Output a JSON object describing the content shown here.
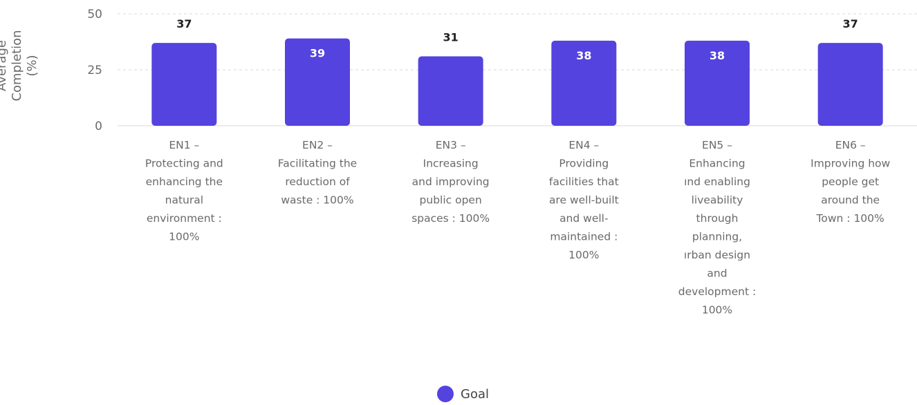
{
  "colors": {
    "bar": "#5443df",
    "grid": "#d9d9d9",
    "value_on_bar": "#ffffff",
    "value_above": "#222222"
  },
  "chart_data": {
    "type": "bar",
    "ylabel": [
      "Average",
      "Completion",
      "(%)"
    ],
    "ylim": [
      0,
      50
    ],
    "yticks": [
      0,
      25,
      50
    ],
    "grid": true,
    "categories": [
      [
        "EN1 –",
        "Protecting and",
        "enhancing the",
        "natural",
        "environment :",
        "100%"
      ],
      [
        "EN2 –",
        "Facilitating the",
        "reduction of",
        "waste : 100%"
      ],
      [
        "EN3 –",
        "Increasing",
        "and improving",
        "public open",
        "spaces : 100%"
      ],
      [
        "EN4 –",
        "Providing",
        "facilities that",
        "are well-built",
        "and well-",
        "maintained :",
        "100%"
      ],
      [
        "EN5 –",
        "Enhancing",
        "ınd enabling",
        "liveability",
        "through",
        "planning,",
        "ırban design",
        "and",
        "development :",
        "100%"
      ],
      [
        "EN6 –",
        "Improving how",
        "people get",
        "around the",
        "Town : 100%"
      ]
    ],
    "values": [
      37,
      39,
      31,
      38,
      38,
      37
    ],
    "label_position": [
      "above",
      "inside",
      "above",
      "inside",
      "inside",
      "above"
    ],
    "series": [
      {
        "name": "Goal",
        "values": [
          37,
          39,
          31,
          38,
          38,
          37
        ]
      }
    ],
    "legend": {
      "position": "bottom-center"
    }
  }
}
